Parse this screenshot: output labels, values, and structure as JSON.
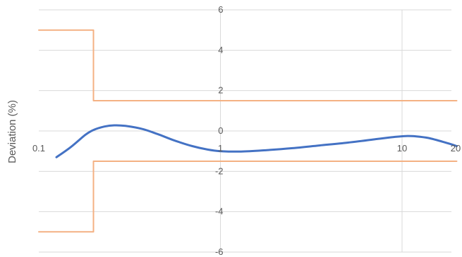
{
  "chart_data": {
    "type": "line",
    "xscale": "log",
    "xlim": [
      0.1,
      20
    ],
    "ylim": [
      -6,
      6
    ],
    "ylabel": "Deviation (%)",
    "xlabel": "",
    "x_ticks": [
      {
        "value": 0.1,
        "label": "0.1"
      },
      {
        "value": 1,
        "label": "1"
      },
      {
        "value": 10,
        "label": "10"
      },
      {
        "value": 20,
        "label": "20"
      }
    ],
    "y_ticks": [
      {
        "value": 6,
        "label": "6"
      },
      {
        "value": 4,
        "label": "4"
      },
      {
        "value": 2,
        "label": "2"
      },
      {
        "value": 0,
        "label": "0"
      },
      {
        "value": -2,
        "label": "-2"
      },
      {
        "value": -4,
        "label": "-4"
      },
      {
        "value": -6,
        "label": "-6"
      }
    ],
    "grid": true,
    "series": [
      {
        "role": "upper-limit",
        "color": "#F4B183",
        "step": true,
        "points": [
          [
            0.1,
            5
          ],
          [
            0.2,
            5
          ],
          [
            0.2,
            1.5
          ],
          [
            20,
            1.5
          ]
        ]
      },
      {
        "role": "lower-limit",
        "color": "#F4B183",
        "step": true,
        "points": [
          [
            0.1,
            -5
          ],
          [
            0.2,
            -5
          ],
          [
            0.2,
            -1.5
          ],
          [
            20,
            -1.5
          ]
        ]
      },
      {
        "role": "measured",
        "color": "#4472C4",
        "smooth": true,
        "points": [
          [
            0.125,
            -1.3
          ],
          [
            0.15,
            -0.8
          ],
          [
            0.18,
            -0.2
          ],
          [
            0.2,
            0.05
          ],
          [
            0.23,
            0.22
          ],
          [
            0.26,
            0.28
          ],
          [
            0.3,
            0.25
          ],
          [
            0.37,
            0.1
          ],
          [
            0.45,
            -0.15
          ],
          [
            0.55,
            -0.45
          ],
          [
            0.7,
            -0.75
          ],
          [
            0.85,
            -0.92
          ],
          [
            1.0,
            -1.0
          ],
          [
            1.3,
            -1.02
          ],
          [
            1.8,
            -0.95
          ],
          [
            2.5,
            -0.85
          ],
          [
            3.5,
            -0.72
          ],
          [
            5,
            -0.58
          ],
          [
            7,
            -0.42
          ],
          [
            9,
            -0.3
          ],
          [
            10.5,
            -0.25
          ],
          [
            12,
            -0.27
          ],
          [
            14,
            -0.35
          ],
          [
            17,
            -0.55
          ],
          [
            20,
            -0.75
          ]
        ]
      }
    ]
  }
}
